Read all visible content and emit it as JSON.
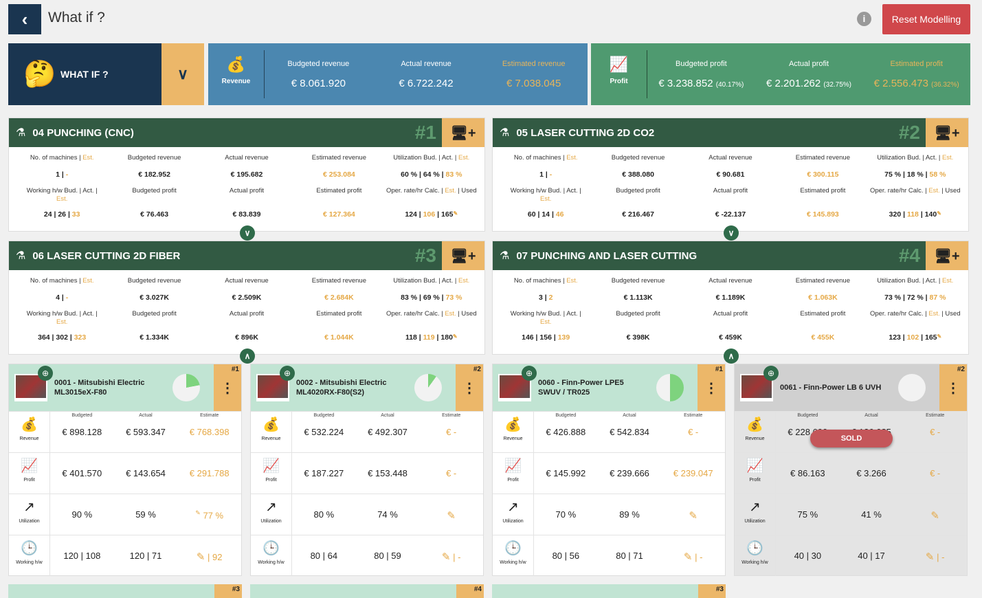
{
  "header": {
    "title": "What if ?",
    "back_icon": "chevron-left-icon",
    "info_icon": "i",
    "reset_label": "Reset Modelling"
  },
  "whatif": {
    "label": "WHAT IF ?",
    "toggle_icon": "chevron-down-icon"
  },
  "revenue": {
    "label": "Revenue",
    "budgeted_label": "Budgeted revenue",
    "budgeted": "€ 8.061.920",
    "actual_label": "Actual revenue",
    "actual": "€ 6.722.242",
    "estimated_label": "Estimated revenue",
    "estimated": "€ 7.038.045"
  },
  "profit": {
    "label": "Profit",
    "budgeted_label": "Budgeted profit",
    "budgeted": "€ 3.238.852",
    "budgeted_pct": "(40.17%)",
    "actual_label": "Actual profit",
    "actual": "€ 2.201.262",
    "actual_pct": "(32.75%)",
    "estimated_label": "Estimated profit",
    "estimated": "€ 2.556.473",
    "estimated_pct": "(36.32%)"
  },
  "colors": {
    "navy": "#1a3550",
    "accent": "#ecb769",
    "revenue": "#4b87b0",
    "profit": "#4f9a70",
    "dept": "#325a43",
    "estimate": "#e5a845",
    "reset": "#d0474b"
  },
  "dept_labels": {
    "machines": "No. of machines | ",
    "est": "Est.",
    "bud_rev": "Budgeted revenue",
    "act_rev": "Actual revenue",
    "est_rev": "Estimated revenue",
    "util": "Utilization Bud. | Act. | ",
    "hours": "Working h/w Bud. | Act. | ",
    "bud_prof": "Budgeted profit",
    "act_prof": "Actual profit",
    "est_prof": "Estimated profit",
    "rate": "Oper. rate/hr Calc. | ",
    "used": " | Used"
  },
  "departments": [
    {
      "name": "04 PUNCHING (CNC)",
      "rank": "#1",
      "machines": "1 | ",
      "machines_est": "-",
      "bud_rev": "€ 182.952",
      "act_rev": "€ 195.682",
      "est_rev": "€ 253.084",
      "util": "60 % | 64 % | ",
      "util_est": "83 %",
      "hours": "24 | 26 | ",
      "hours_est": "33",
      "bud_prof": "€ 76.463",
      "act_prof": "€ 83.839",
      "est_prof": "€ 127.364",
      "rate": "124 | ",
      "rate_est": "106",
      "rate_used": " | 165",
      "toggle": "chevron-down"
    },
    {
      "name": "05 LASER CUTTING 2D CO2",
      "rank": "#2",
      "machines": "1 | ",
      "machines_est": "-",
      "bud_rev": "€ 388.080",
      "act_rev": "€ 90.681",
      "est_rev": "€ 300.115",
      "util": "75 % | 18 % | ",
      "util_est": "58 %",
      "hours": "60 | 14 | ",
      "hours_est": "46",
      "bud_prof": "€ 216.467",
      "act_prof": "€ -22.137",
      "est_prof": "€ 145.893",
      "rate": "320 | ",
      "rate_est": "118",
      "rate_used": " | 140",
      "toggle": "chevron-down"
    },
    {
      "name": "06 LASER CUTTING 2D FIBER",
      "rank": "#3",
      "machines": "4 | ",
      "machines_est": "-",
      "bud_rev": "€ 3.027K",
      "act_rev": "€ 2.509K",
      "est_rev": "€ 2.684K",
      "util": "83 % | 69 % | ",
      "util_est": "73 %",
      "hours": "364 | 302 | ",
      "hours_est": "323",
      "bud_prof": "€ 1.334K",
      "act_prof": "€ 896K",
      "est_prof": "€ 1.044K",
      "rate": "118 | ",
      "rate_est": "119",
      "rate_used": " | 180",
      "toggle": "chevron-up"
    },
    {
      "name": "07 PUNCHING AND LASER CUTTING",
      "rank": "#4",
      "machines": "3 | ",
      "machines_est": "2",
      "bud_rev": "€ 1.113K",
      "act_rev": "€ 1.189K",
      "est_rev": "€ 1.063K",
      "util": "73 % | 72 % | ",
      "util_est": "87 %",
      "hours": "146 | 156 | ",
      "hours_est": "139",
      "bud_prof": "€ 398K",
      "act_prof": "€ 459K",
      "est_prof": "€ 455K",
      "rate": "123 | ",
      "rate_est": "102",
      "rate_used": " | 165",
      "toggle": "chevron-up"
    }
  ],
  "machine_labels": {
    "budgeted": "Budgeted",
    "actual": "Actual",
    "estimate": "Estimate",
    "revenue": "Revenue",
    "profit": "Profit",
    "utilization": "Utilization",
    "hours": "Working h/w"
  },
  "machines": [
    {
      "name": "0001 - Mitsubishi Electric",
      "model": "ML3015eX-F80",
      "rank": "#1",
      "utilization_share": 0.22,
      "rev": [
        "€ 898.128",
        "€ 593.347",
        "€ 768.398"
      ],
      "prof": [
        "€ 401.570",
        "€ 143.654",
        "€ 291.788"
      ],
      "util": [
        "90 %",
        "59 %",
        "77 %"
      ],
      "hours": [
        "120 | 108",
        "120 | 71",
        "| 92"
      ]
    },
    {
      "name": "0002 - Mitsubishi Electric",
      "model": "ML4020RX-F80(S2)",
      "rank": "#2",
      "utilization_share": 0.1,
      "rev": [
        "€ 532.224",
        "€ 492.307",
        "€ -"
      ],
      "prof": [
        "€ 187.227",
        "€ 153.448",
        "€ -"
      ],
      "util": [
        "80 %",
        "74 %",
        ""
      ],
      "hours": [
        "80 | 64",
        "80 | 59",
        "| -"
      ]
    },
    {
      "name": "0060 - Finn-Power LPE5",
      "model": "SWUV / TR025",
      "rank": "#1",
      "utilization_share": 0.5,
      "rev": [
        "€ 426.888",
        "€ 542.834",
        "€ -"
      ],
      "prof": [
        "€ 145.992",
        "€ 239.666",
        "€ 239.047"
      ],
      "util": [
        "70 %",
        "89 %",
        ""
      ],
      "hours": [
        "80 | 56",
        "80 | 71",
        "| -"
      ]
    },
    {
      "name": "0061 - Finn-Power LB 6 UVH",
      "model": "",
      "rank": "#2",
      "utilization_share": 0,
      "sold": "SOLD",
      "rev": [
        "€ 228.600",
        "€ 126.085",
        "€ -"
      ],
      "prof": [
        "€ 86.163",
        "€ 3.266",
        "€ -"
      ],
      "util": [
        "75 %",
        "41 %",
        ""
      ],
      "hours": [
        "40 | 30",
        "40 | 17",
        "| -"
      ]
    }
  ],
  "more_machines": [
    {
      "rank": "#3"
    },
    {
      "rank": "#4"
    },
    {
      "rank": "#3"
    }
  ]
}
